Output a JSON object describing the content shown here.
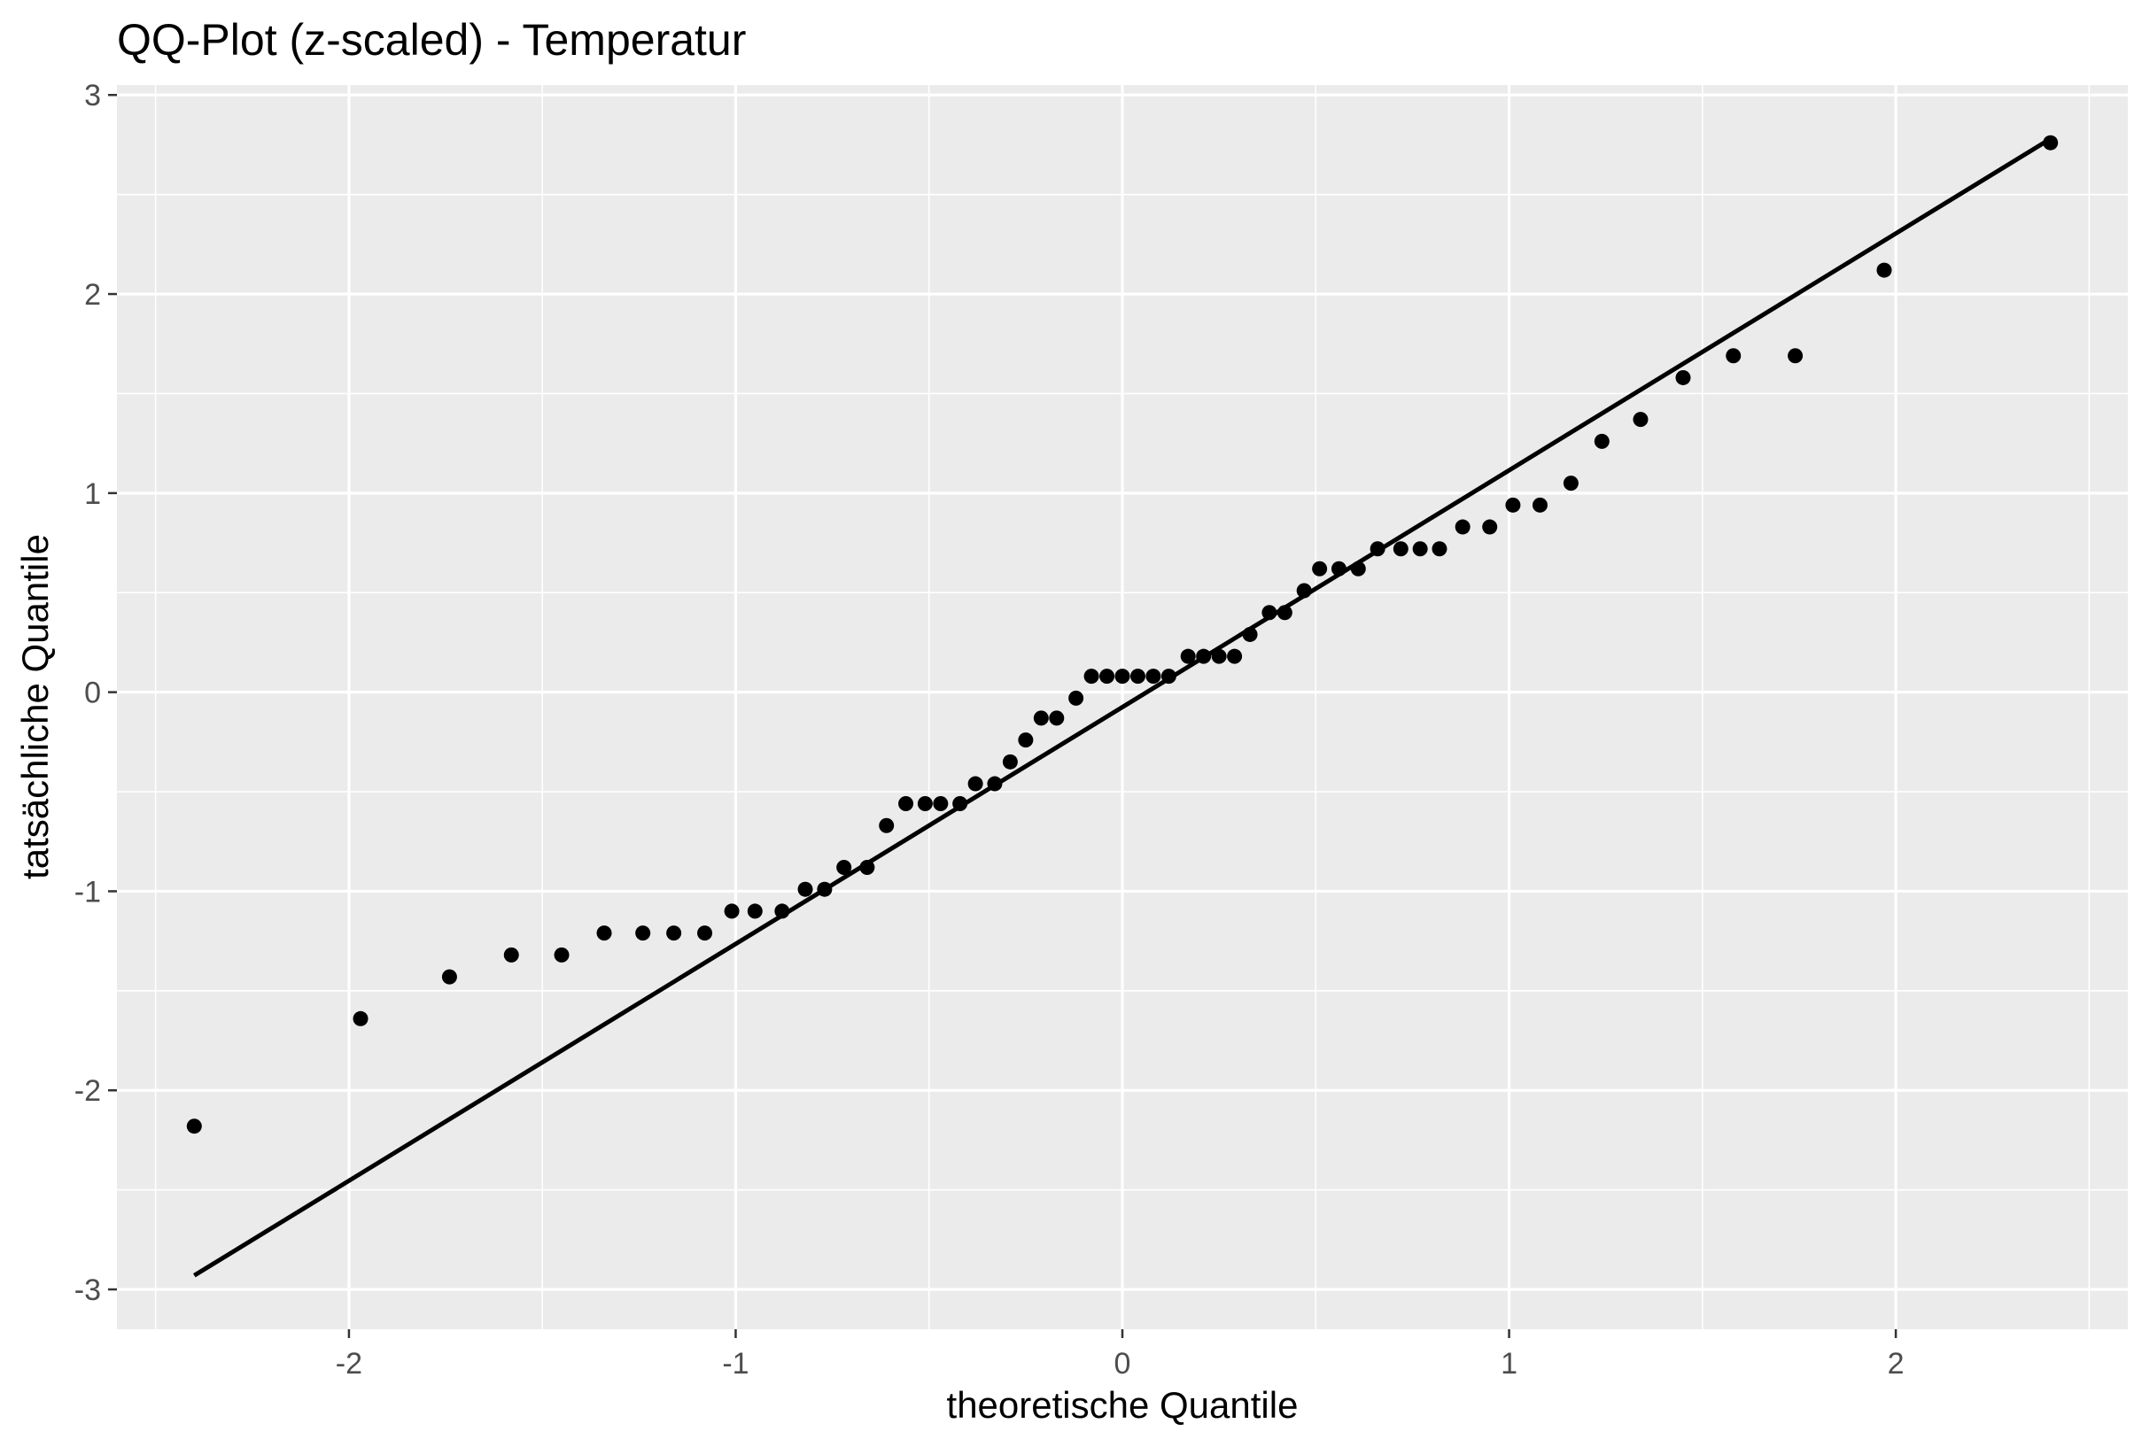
{
  "chart_data": {
    "type": "scatter",
    "title": "QQ-Plot (z-scaled) - Temperatur",
    "xlabel": "theoretische Quantile",
    "ylabel": "tatsächliche Quantile",
    "xlim": [
      -2.6,
      2.6
    ],
    "ylim": [
      -3.2,
      3.05
    ],
    "x_ticks": [
      -2,
      -1,
      0,
      1,
      2
    ],
    "x_tick_labels": [
      "-2",
      "-1",
      "0",
      "1",
      "2"
    ],
    "y_ticks": [
      -3,
      -2,
      -1,
      0,
      1,
      2,
      3
    ],
    "y_tick_labels": [
      "-3",
      "-2",
      "-1",
      "0",
      "1",
      "2",
      "3"
    ],
    "grid": true,
    "background": "#ebebeb",
    "grid_color": "#ffffff",
    "point_color": "#000000",
    "line_color": "#000000",
    "points": [
      [
        -2.4,
        -2.18
      ],
      [
        -1.97,
        -1.64
      ],
      [
        -1.74,
        -1.43
      ],
      [
        -1.58,
        -1.32
      ],
      [
        -1.45,
        -1.32
      ],
      [
        -1.34,
        -1.21
      ],
      [
        -1.24,
        -1.21
      ],
      [
        -1.16,
        -1.21
      ],
      [
        -1.08,
        -1.21
      ],
      [
        -1.01,
        -1.1
      ],
      [
        -0.95,
        -1.1
      ],
      [
        -0.88,
        -1.1
      ],
      [
        -0.82,
        -0.99
      ],
      [
        -0.77,
        -0.99
      ],
      [
        -0.72,
        -0.88
      ],
      [
        -0.66,
        -0.88
      ],
      [
        -0.61,
        -0.67
      ],
      [
        -0.56,
        -0.56
      ],
      [
        -0.51,
        -0.56
      ],
      [
        -0.47,
        -0.56
      ],
      [
        -0.42,
        -0.56
      ],
      [
        -0.38,
        -0.46
      ],
      [
        -0.33,
        -0.46
      ],
      [
        -0.29,
        -0.35
      ],
      [
        -0.25,
        -0.24
      ],
      [
        -0.21,
        -0.13
      ],
      [
        -0.17,
        -0.13
      ],
      [
        -0.12,
        -0.03
      ],
      [
        -0.08,
        0.08
      ],
      [
        -0.04,
        0.08
      ],
      [
        0.0,
        0.08
      ],
      [
        0.04,
        0.08
      ],
      [
        0.08,
        0.08
      ],
      [
        0.12,
        0.08
      ],
      [
        0.17,
        0.18
      ],
      [
        0.21,
        0.18
      ],
      [
        0.25,
        0.18
      ],
      [
        0.29,
        0.18
      ],
      [
        0.33,
        0.29
      ],
      [
        0.38,
        0.4
      ],
      [
        0.42,
        0.4
      ],
      [
        0.47,
        0.51
      ],
      [
        0.51,
        0.62
      ],
      [
        0.56,
        0.62
      ],
      [
        0.61,
        0.62
      ],
      [
        0.66,
        0.72
      ],
      [
        0.72,
        0.72
      ],
      [
        0.77,
        0.72
      ],
      [
        0.82,
        0.72
      ],
      [
        0.88,
        0.83
      ],
      [
        0.95,
        0.83
      ],
      [
        1.01,
        0.94
      ],
      [
        1.08,
        0.94
      ],
      [
        1.16,
        1.05
      ],
      [
        1.24,
        1.26
      ],
      [
        1.34,
        1.37
      ],
      [
        1.45,
        1.58
      ],
      [
        1.58,
        1.69
      ],
      [
        1.74,
        1.69
      ],
      [
        1.97,
        2.12
      ],
      [
        2.4,
        2.76
      ]
    ],
    "reference_line": {
      "x": [
        -2.4,
        2.4
      ],
      "y": [
        -2.93,
        2.78
      ]
    }
  }
}
